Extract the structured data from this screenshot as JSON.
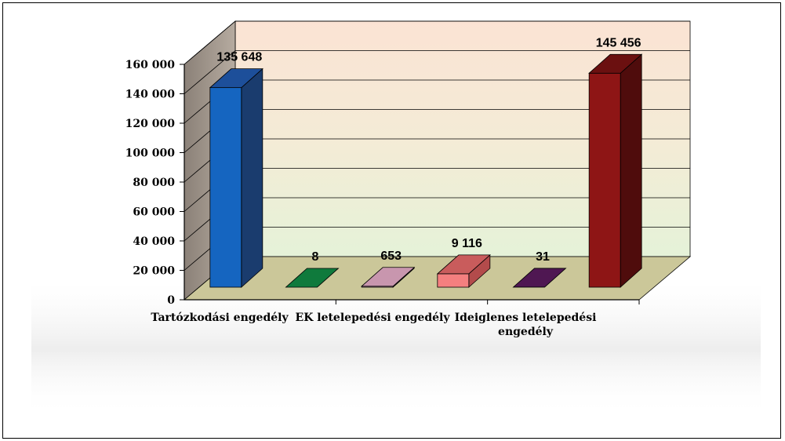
{
  "chart_data": {
    "type": "bar",
    "three_d": true,
    "categories": [
      "Tartózkodási engedély",
      "",
      "EK letelepedési engedély",
      "",
      "Ideiglenes letelepedési engedély",
      ""
    ],
    "category_label_lines": [
      [
        "Tartózkodási engedély"
      ],
      [],
      [
        "EK letelepedési engedély"
      ],
      [],
      [
        "Ideiglenes letelepedési",
        "engedély"
      ],
      []
    ],
    "values": [
      135648,
      8,
      653,
      9116,
      31,
      145456
    ],
    "value_labels": [
      "135 648",
      "8",
      "653",
      "9 116",
      "31",
      "145 456"
    ],
    "bar_colors": [
      {
        "front": "#1565c0",
        "side": "#1a3c6e",
        "top": "#1d4f9a"
      },
      {
        "front": "#117a3f",
        "side": "#0b4f28",
        "top": "#0f7a3c"
      },
      {
        "front": "#d9a0b9",
        "side": "#a06d84",
        "top": "#c896ae"
      },
      {
        "front": "#f47f7f",
        "side": "#b34b4b",
        "top": "#c95c5c"
      },
      {
        "front": "#5a1a5e",
        "side": "#3a0f3d",
        "top": "#4f1752"
      },
      {
        "front": "#8e1515",
        "side": "#4f0c0c",
        "top": "#6b1010"
      }
    ],
    "yticks": [
      0,
      20000,
      40000,
      60000,
      80000,
      100000,
      120000,
      140000,
      160000
    ],
    "ytick_labels": [
      "0",
      "20 000",
      "40 000",
      "60 000",
      "80 000",
      "100 000",
      "120 000",
      "140 000",
      "160 000"
    ],
    "ylim": [
      0,
      160000
    ],
    "grid": true,
    "legend": "none",
    "title": "",
    "xlabel": "",
    "ylabel": ""
  }
}
